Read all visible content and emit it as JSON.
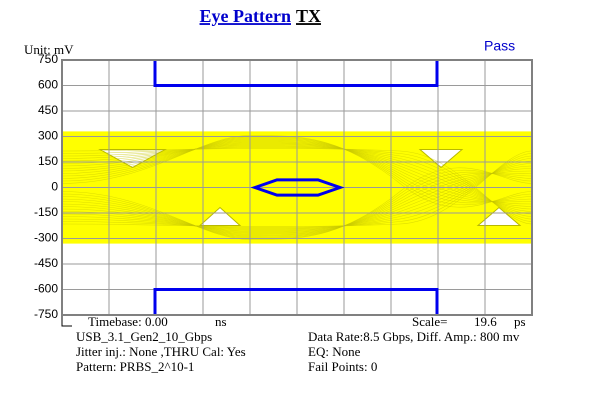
{
  "chart_data": {
    "type": "eye",
    "title": "Eye Pattern",
    "title_suffix": "TX",
    "unit_label": "Unit: mV",
    "status": "Pass",
    "ylim": [
      -750,
      750
    ],
    "yticks": [
      750,
      600,
      450,
      300,
      150,
      0,
      -150,
      -300,
      -450,
      -600,
      -750
    ],
    "grid": true,
    "signal_range": [
      330,
      -330
    ],
    "signal_color": "#ffff00",
    "upper_mask": 600,
    "lower_mask": -600,
    "inner_mask": [
      45,
      -45
    ],
    "mask_color": "#0000ee",
    "timebase_label": "Timebase: 0.00",
    "timebase_unit": "ns",
    "scale_label": "Scale=",
    "scale_value": "19.6",
    "scale_unit": "ps",
    "info_left": [
      "USB_3.1_Gen2_10_Gbps",
      "Jitter inj.: None ,THRU Cal: Yes",
      "Pattern: PRBS_2^10-1"
    ],
    "info_right": [
      "Data Rate:8.5 Gbps, Diff. Amp.: 800 mv",
      "EQ: None",
      "Fail Points: 0"
    ]
  }
}
